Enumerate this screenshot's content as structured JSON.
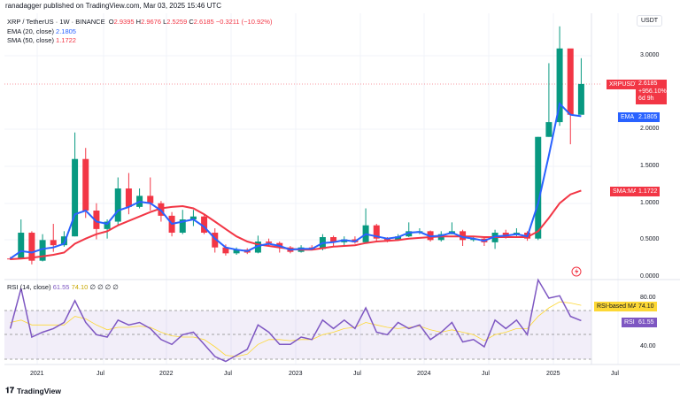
{
  "header": {
    "published": "ranadagger published on TradingView.com, Mar 03, 2025 15:46 UTC",
    "symbol": "XRP / TetherUS · 1W · BINANCE",
    "o_label": "O",
    "o": "2.9395",
    "h_label": "H",
    "h": "2.9676",
    "l_label": "L",
    "l": "2.5259",
    "c_label": "C",
    "c": "2.6185",
    "change": "−0.3211 (−10.92%)",
    "ema_label": "EMA (20, close)",
    "ema_value": "2.1805",
    "sma_label": "SMA (50, close)",
    "sma_value": "1.1722",
    "rsi_label": "RSI (14, close)",
    "rsi_value": "61.55",
    "rsi_ma_value": "74.10",
    "rsi_extra": "∅ ∅ ∅ ∅"
  },
  "price_axis": {
    "currency": "USDT",
    "ticks": [
      "3.0000",
      "2.0000",
      "1.5000",
      "1.0000",
      "0.5000",
      "0.0000"
    ]
  },
  "tags": {
    "symbol": "XRPUSDT",
    "price": "2.6185",
    "pct": "+956.10%",
    "countdown": "6d 9h",
    "ema_name": "EMA",
    "ema": "2.1805",
    "sma_name": "SMA:MA",
    "sma": "1.1722",
    "rsi_ma_name": "RSI-based MA",
    "rsi_ma": "74.10",
    "rsi_name": "RSI",
    "rsi": "61.55"
  },
  "rsi_axis": {
    "ticks": [
      "80.00",
      "40.00"
    ]
  },
  "time_axis": [
    "2021",
    "Jul",
    "2022",
    "Jul",
    "2023",
    "Jul",
    "2024",
    "Jul",
    "2025",
    "Jul"
  ],
  "footer": {
    "brand": "TradingView"
  },
  "colors": {
    "up": "#089981",
    "down": "#f23645",
    "ema": "#2962ff",
    "sma": "#f23645",
    "rsi": "#7e57c2",
    "rsi_ma": "#fdd835"
  },
  "chart_data": {
    "type": "candlestick",
    "interval": "1W (approximated monthly)",
    "ylim": [
      0,
      3.5
    ],
    "rsi_ylim": [
      20,
      100
    ],
    "rsi_bands": [
      70,
      50,
      30
    ],
    "dates": [
      "2020-10",
      "2020-11",
      "2020-12",
      "2021-01",
      "2021-02",
      "2021-03",
      "2021-04",
      "2021-05",
      "2021-06",
      "2021-07",
      "2021-08",
      "2021-09",
      "2021-10",
      "2021-11",
      "2021-12",
      "2022-01",
      "2022-02",
      "2022-03",
      "2022-04",
      "2022-05",
      "2022-06",
      "2022-07",
      "2022-08",
      "2022-09",
      "2022-10",
      "2022-11",
      "2022-12",
      "2023-01",
      "2023-02",
      "2023-03",
      "2023-04",
      "2023-05",
      "2023-06",
      "2023-07",
      "2023-08",
      "2023-09",
      "2023-10",
      "2023-11",
      "2023-12",
      "2024-01",
      "2024-02",
      "2024-03",
      "2024-04",
      "2024-05",
      "2024-06",
      "2024-07",
      "2024-08",
      "2024-09",
      "2024-10",
      "2024-11",
      "2024-12",
      "2025-01",
      "2025-02",
      "2025-03"
    ],
    "close": [
      0.24,
      0.6,
      0.22,
      0.5,
      0.43,
      0.55,
      1.6,
      0.9,
      0.65,
      0.75,
      1.2,
      0.95,
      1.1,
      1.0,
      0.83,
      0.6,
      0.78,
      0.82,
      0.6,
      0.4,
      0.32,
      0.37,
      0.33,
      0.48,
      0.46,
      0.4,
      0.34,
      0.4,
      0.38,
      0.54,
      0.47,
      0.51,
      0.47,
      0.7,
      0.52,
      0.5,
      0.55,
      0.62,
      0.62,
      0.5,
      0.58,
      0.62,
      0.5,
      0.52,
      0.47,
      0.6,
      0.57,
      0.6,
      0.52,
      1.9,
      2.1,
      3.1,
      2.2,
      2.6185
    ],
    "high": [
      0.27,
      0.78,
      0.62,
      0.58,
      0.72,
      0.62,
      1.96,
      1.75,
      1.0,
      0.78,
      1.35,
      1.41,
      1.2,
      1.35,
      1.03,
      0.88,
      0.91,
      0.91,
      0.84,
      0.66,
      0.44,
      0.4,
      0.39,
      0.56,
      0.52,
      0.48,
      0.42,
      0.43,
      0.43,
      0.58,
      0.56,
      0.55,
      0.55,
      0.93,
      0.72,
      0.54,
      0.58,
      0.74,
      0.66,
      0.63,
      0.62,
      0.74,
      0.64,
      0.55,
      0.53,
      0.64,
      0.64,
      0.66,
      0.62,
      1.9,
      2.9,
      3.4,
      3.0,
      2.9676
    ],
    "low": [
      0.23,
      0.24,
      0.17,
      0.21,
      0.34,
      0.41,
      0.55,
      0.8,
      0.51,
      0.52,
      0.7,
      0.85,
      0.93,
      0.9,
      0.75,
      0.55,
      0.58,
      0.69,
      0.58,
      0.33,
      0.29,
      0.3,
      0.31,
      0.32,
      0.42,
      0.33,
      0.32,
      0.33,
      0.36,
      0.36,
      0.42,
      0.41,
      0.45,
      0.46,
      0.47,
      0.47,
      0.49,
      0.54,
      0.58,
      0.48,
      0.48,
      0.58,
      0.42,
      0.48,
      0.42,
      0.38,
      0.52,
      0.53,
      0.49,
      0.5,
      1.9,
      2.05,
      1.8,
      2.5259
    ],
    "ema20": [
      0.25,
      0.35,
      0.33,
      0.38,
      0.4,
      0.45,
      0.85,
      0.9,
      0.75,
      0.72,
      0.9,
      0.95,
      1.02,
      1.0,
      0.9,
      0.72,
      0.75,
      0.78,
      0.68,
      0.52,
      0.4,
      0.37,
      0.35,
      0.42,
      0.45,
      0.42,
      0.37,
      0.38,
      0.38,
      0.46,
      0.47,
      0.5,
      0.48,
      0.58,
      0.55,
      0.52,
      0.54,
      0.6,
      0.61,
      0.55,
      0.56,
      0.6,
      0.54,
      0.52,
      0.49,
      0.55,
      0.56,
      0.58,
      0.55,
      1.0,
      1.65,
      2.35,
      2.2,
      2.1805
    ],
    "sma50": [
      0.24,
      0.25,
      0.26,
      0.28,
      0.3,
      0.33,
      0.45,
      0.52,
      0.58,
      0.62,
      0.7,
      0.76,
      0.82,
      0.88,
      0.93,
      0.95,
      0.96,
      0.93,
      0.85,
      0.75,
      0.65,
      0.55,
      0.48,
      0.44,
      0.42,
      0.4,
      0.38,
      0.37,
      0.37,
      0.39,
      0.41,
      0.42,
      0.43,
      0.46,
      0.48,
      0.49,
      0.5,
      0.52,
      0.53,
      0.54,
      0.55,
      0.55,
      0.55,
      0.55,
      0.54,
      0.54,
      0.54,
      0.54,
      0.54,
      0.62,
      0.8,
      1.0,
      1.12,
      1.1722
    ],
    "rsi": [
      55,
      88,
      48,
      52,
      55,
      60,
      78,
      60,
      50,
      48,
      62,
      58,
      60,
      55,
      46,
      42,
      50,
      52,
      42,
      32,
      28,
      33,
      38,
      58,
      52,
      42,
      42,
      48,
      46,
      62,
      55,
      62,
      55,
      72,
      52,
      50,
      60,
      55,
      58,
      46,
      52,
      60,
      44,
      46,
      40,
      62,
      55,
      62,
      50,
      95,
      80,
      82,
      65,
      61.55
    ],
    "rsi_ma": [
      60,
      62,
      58,
      58,
      58,
      58,
      65,
      63,
      58,
      54,
      56,
      56,
      57,
      56,
      52,
      49,
      48,
      48,
      46,
      40,
      33,
      32,
      34,
      42,
      46,
      46,
      45,
      46,
      46,
      50,
      52,
      55,
      56,
      60,
      58,
      56,
      55,
      56,
      57,
      54,
      52,
      54,
      52,
      50,
      45,
      50,
      52,
      55,
      55,
      65,
      72,
      77,
      76,
      74.1
    ]
  }
}
